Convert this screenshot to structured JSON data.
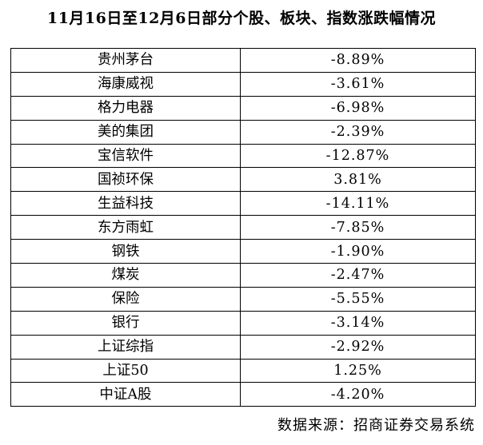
{
  "title": "11月16日至12月6日部分个股、板块、指数涨跌幅情况",
  "source": "数据来源：招商证券交易系统",
  "chart_data": {
    "type": "table",
    "title": "11月16日至12月6日部分个股、板块、指数涨跌幅情况",
    "columns": [],
    "rows": [
      {
        "name": "贵州茅台",
        "value": "-8.89%"
      },
      {
        "name": "海康威视",
        "value": "-3.61%"
      },
      {
        "name": "格力电器",
        "value": "-6.98%"
      },
      {
        "name": "美的集团",
        "value": "-2.39%"
      },
      {
        "name": "宝信软件",
        "value": "-12.87%"
      },
      {
        "name": "国祯环保",
        "value": "3.81%"
      },
      {
        "name": "生益科技",
        "value": "-14.11%"
      },
      {
        "name": "东方雨虹",
        "value": "-7.85%"
      },
      {
        "name": "钢铁",
        "value": "-1.90%"
      },
      {
        "name": "煤炭",
        "value": "-2.47%"
      },
      {
        "name": "保险",
        "value": "-5.55%"
      },
      {
        "name": "银行",
        "value": "-3.14%"
      },
      {
        "name": "上证综指",
        "value": "-2.92%"
      },
      {
        "name": "上证50",
        "value": "1.25%"
      },
      {
        "name": "中证A股",
        "value": "-4.20%"
      }
    ]
  }
}
